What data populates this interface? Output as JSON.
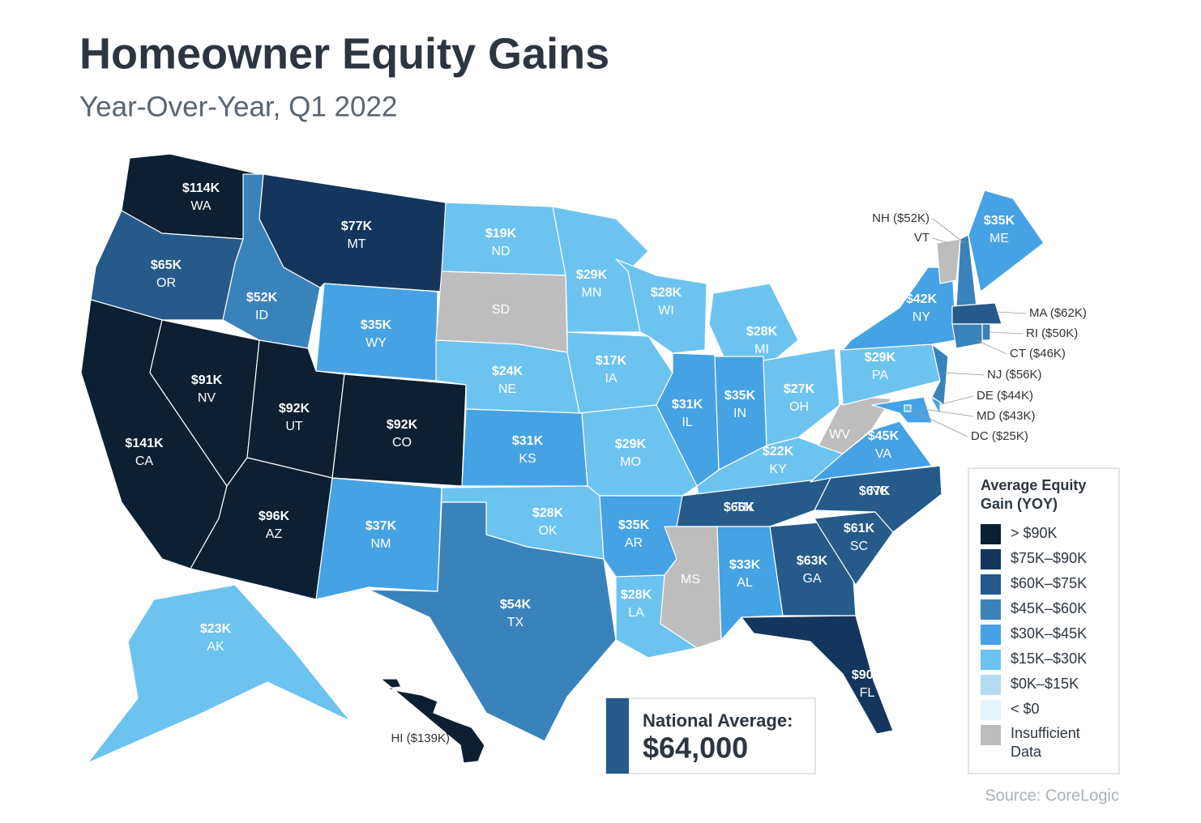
{
  "header": {
    "title": "Homeowner Equity Gains",
    "subtitle": "Year-Over-Year, Q1 2022"
  },
  "states": [
    {
      "abbr": "WA",
      "value": "$114K",
      "color": "#0c1f33"
    },
    {
      "abbr": "OR",
      "value": "$65K",
      "color": "#255a8a"
    },
    {
      "abbr": "CA",
      "value": "$141K",
      "color": "#0c1f33"
    },
    {
      "abbr": "NV",
      "value": "$91K",
      "color": "#0c1f33"
    },
    {
      "abbr": "ID",
      "value": "$52K",
      "color": "#3a82ba"
    },
    {
      "abbr": "MT",
      "value": "$77K",
      "color": "#14365c"
    },
    {
      "abbr": "WY",
      "value": "$35K",
      "color": "#45a2e4"
    },
    {
      "abbr": "UT",
      "value": "$92K",
      "color": "#0c1f33"
    },
    {
      "abbr": "CO",
      "value": "$92K",
      "color": "#0c1f33"
    },
    {
      "abbr": "AZ",
      "value": "$96K",
      "color": "#0c1f33"
    },
    {
      "abbr": "NM",
      "value": "$37K",
      "color": "#45a2e4"
    },
    {
      "abbr": "ND",
      "value": "$19K",
      "color": "#6dc3ef"
    },
    {
      "abbr": "SD",
      "color": "#bdbdbd"
    },
    {
      "abbr": "NE",
      "value": "$24K",
      "color": "#6dc3ef"
    },
    {
      "abbr": "KS",
      "value": "$31K",
      "color": "#45a2e4"
    },
    {
      "abbr": "OK",
      "value": "$28K",
      "color": "#6dc3ef"
    },
    {
      "abbr": "TX",
      "value": "$54K",
      "color": "#3a82ba"
    },
    {
      "abbr": "MN",
      "value": "$29K",
      "color": "#6dc3ef"
    },
    {
      "abbr": "IA",
      "value": "$17K",
      "color": "#6dc3ef"
    },
    {
      "abbr": "MO",
      "value": "$29K",
      "color": "#6dc3ef"
    },
    {
      "abbr": "AR",
      "value": "$35K",
      "color": "#45a2e4"
    },
    {
      "abbr": "LA",
      "value": "$28K",
      "color": "#6dc3ef"
    },
    {
      "abbr": "WI",
      "value": "$28K",
      "color": "#6dc3ef"
    },
    {
      "abbr": "MI",
      "value": "$28K",
      "color": "#6dc3ef"
    },
    {
      "abbr": "IL",
      "value": "$31K",
      "color": "#45a2e4"
    },
    {
      "abbr": "IN",
      "value": "$35K",
      "color": "#45a2e4"
    },
    {
      "abbr": "OH",
      "value": "$27K",
      "color": "#6dc3ef"
    },
    {
      "abbr": "KY",
      "value": "$22K",
      "color": "#6dc3ef"
    },
    {
      "abbr": "TN",
      "value": "$66K",
      "color": "#255a8a"
    },
    {
      "abbr": "MS",
      "color": "#bdbdbd"
    },
    {
      "abbr": "AL",
      "value": "$33K",
      "color": "#45a2e4"
    },
    {
      "abbr": "GA",
      "value": "$63K",
      "color": "#255a8a"
    },
    {
      "abbr": "FL",
      "value": "$90K",
      "color": "#14365c"
    },
    {
      "abbr": "SC",
      "value": "$61K",
      "color": "#255a8a"
    },
    {
      "abbr": "NC",
      "value": "$67K",
      "color": "#255a8a"
    },
    {
      "abbr": "VA",
      "value": "$45K",
      "color": "#45a2e4"
    },
    {
      "abbr": "WV",
      "color": "#bdbdbd"
    },
    {
      "abbr": "PA",
      "value": "$29K",
      "color": "#6dc3ef"
    },
    {
      "abbr": "NY",
      "value": "$42K",
      "color": "#45a2e4"
    },
    {
      "abbr": "VT",
      "color": "#bdbdbd"
    },
    {
      "abbr": "NH",
      "label": "NH ($52K)",
      "color": "#3a82ba"
    },
    {
      "abbr": "ME",
      "value": "$35K",
      "color": "#45a2e4"
    },
    {
      "abbr": "MA",
      "label": "MA ($62K)",
      "color": "#255a8a"
    },
    {
      "abbr": "RI",
      "label": "RI ($50K)",
      "color": "#3a82ba"
    },
    {
      "abbr": "CT",
      "label": "CT ($46K)",
      "color": "#3a82ba"
    },
    {
      "abbr": "NJ",
      "label": "NJ ($56K)",
      "color": "#3a82ba"
    },
    {
      "abbr": "DE",
      "label": "DE ($44K)",
      "color": "#45a2e4"
    },
    {
      "abbr": "MD",
      "label": "MD ($43K)",
      "color": "#45a2e4"
    },
    {
      "abbr": "DC",
      "label": "DC ($25K)",
      "color": "#6dc3ef"
    },
    {
      "abbr": "AK",
      "value": "$23K",
      "color": "#6dc3ef"
    },
    {
      "abbr": "HI",
      "label": "HI ($139K)",
      "color": "#0c1f33"
    }
  ],
  "legend": {
    "title": [
      "Average Equity",
      "Gain (YOY)"
    ],
    "items": [
      {
        "label": "> $90K",
        "color": "#0c1f33"
      },
      {
        "label": "$75K–$90K",
        "color": "#14365c"
      },
      {
        "label": "$60K–$75K",
        "color": "#255a8a"
      },
      {
        "label": "$45K–$60K",
        "color": "#3a82ba"
      },
      {
        "label": "$30K–$45K",
        "color": "#45a2e4"
      },
      {
        "label": "$15K–$30K",
        "color": "#6dc3ef"
      },
      {
        "label": "$0K–$15K",
        "color": "#b5dcf3"
      },
      {
        "label": "< $0",
        "color": "#e6f4fd"
      },
      {
        "label": [
          "Insufficient",
          "Data"
        ],
        "color": "#bdbdbd"
      }
    ]
  },
  "national": {
    "label": "National Average:",
    "value": "$64,000"
  },
  "source": "Source: CoreLogic"
}
